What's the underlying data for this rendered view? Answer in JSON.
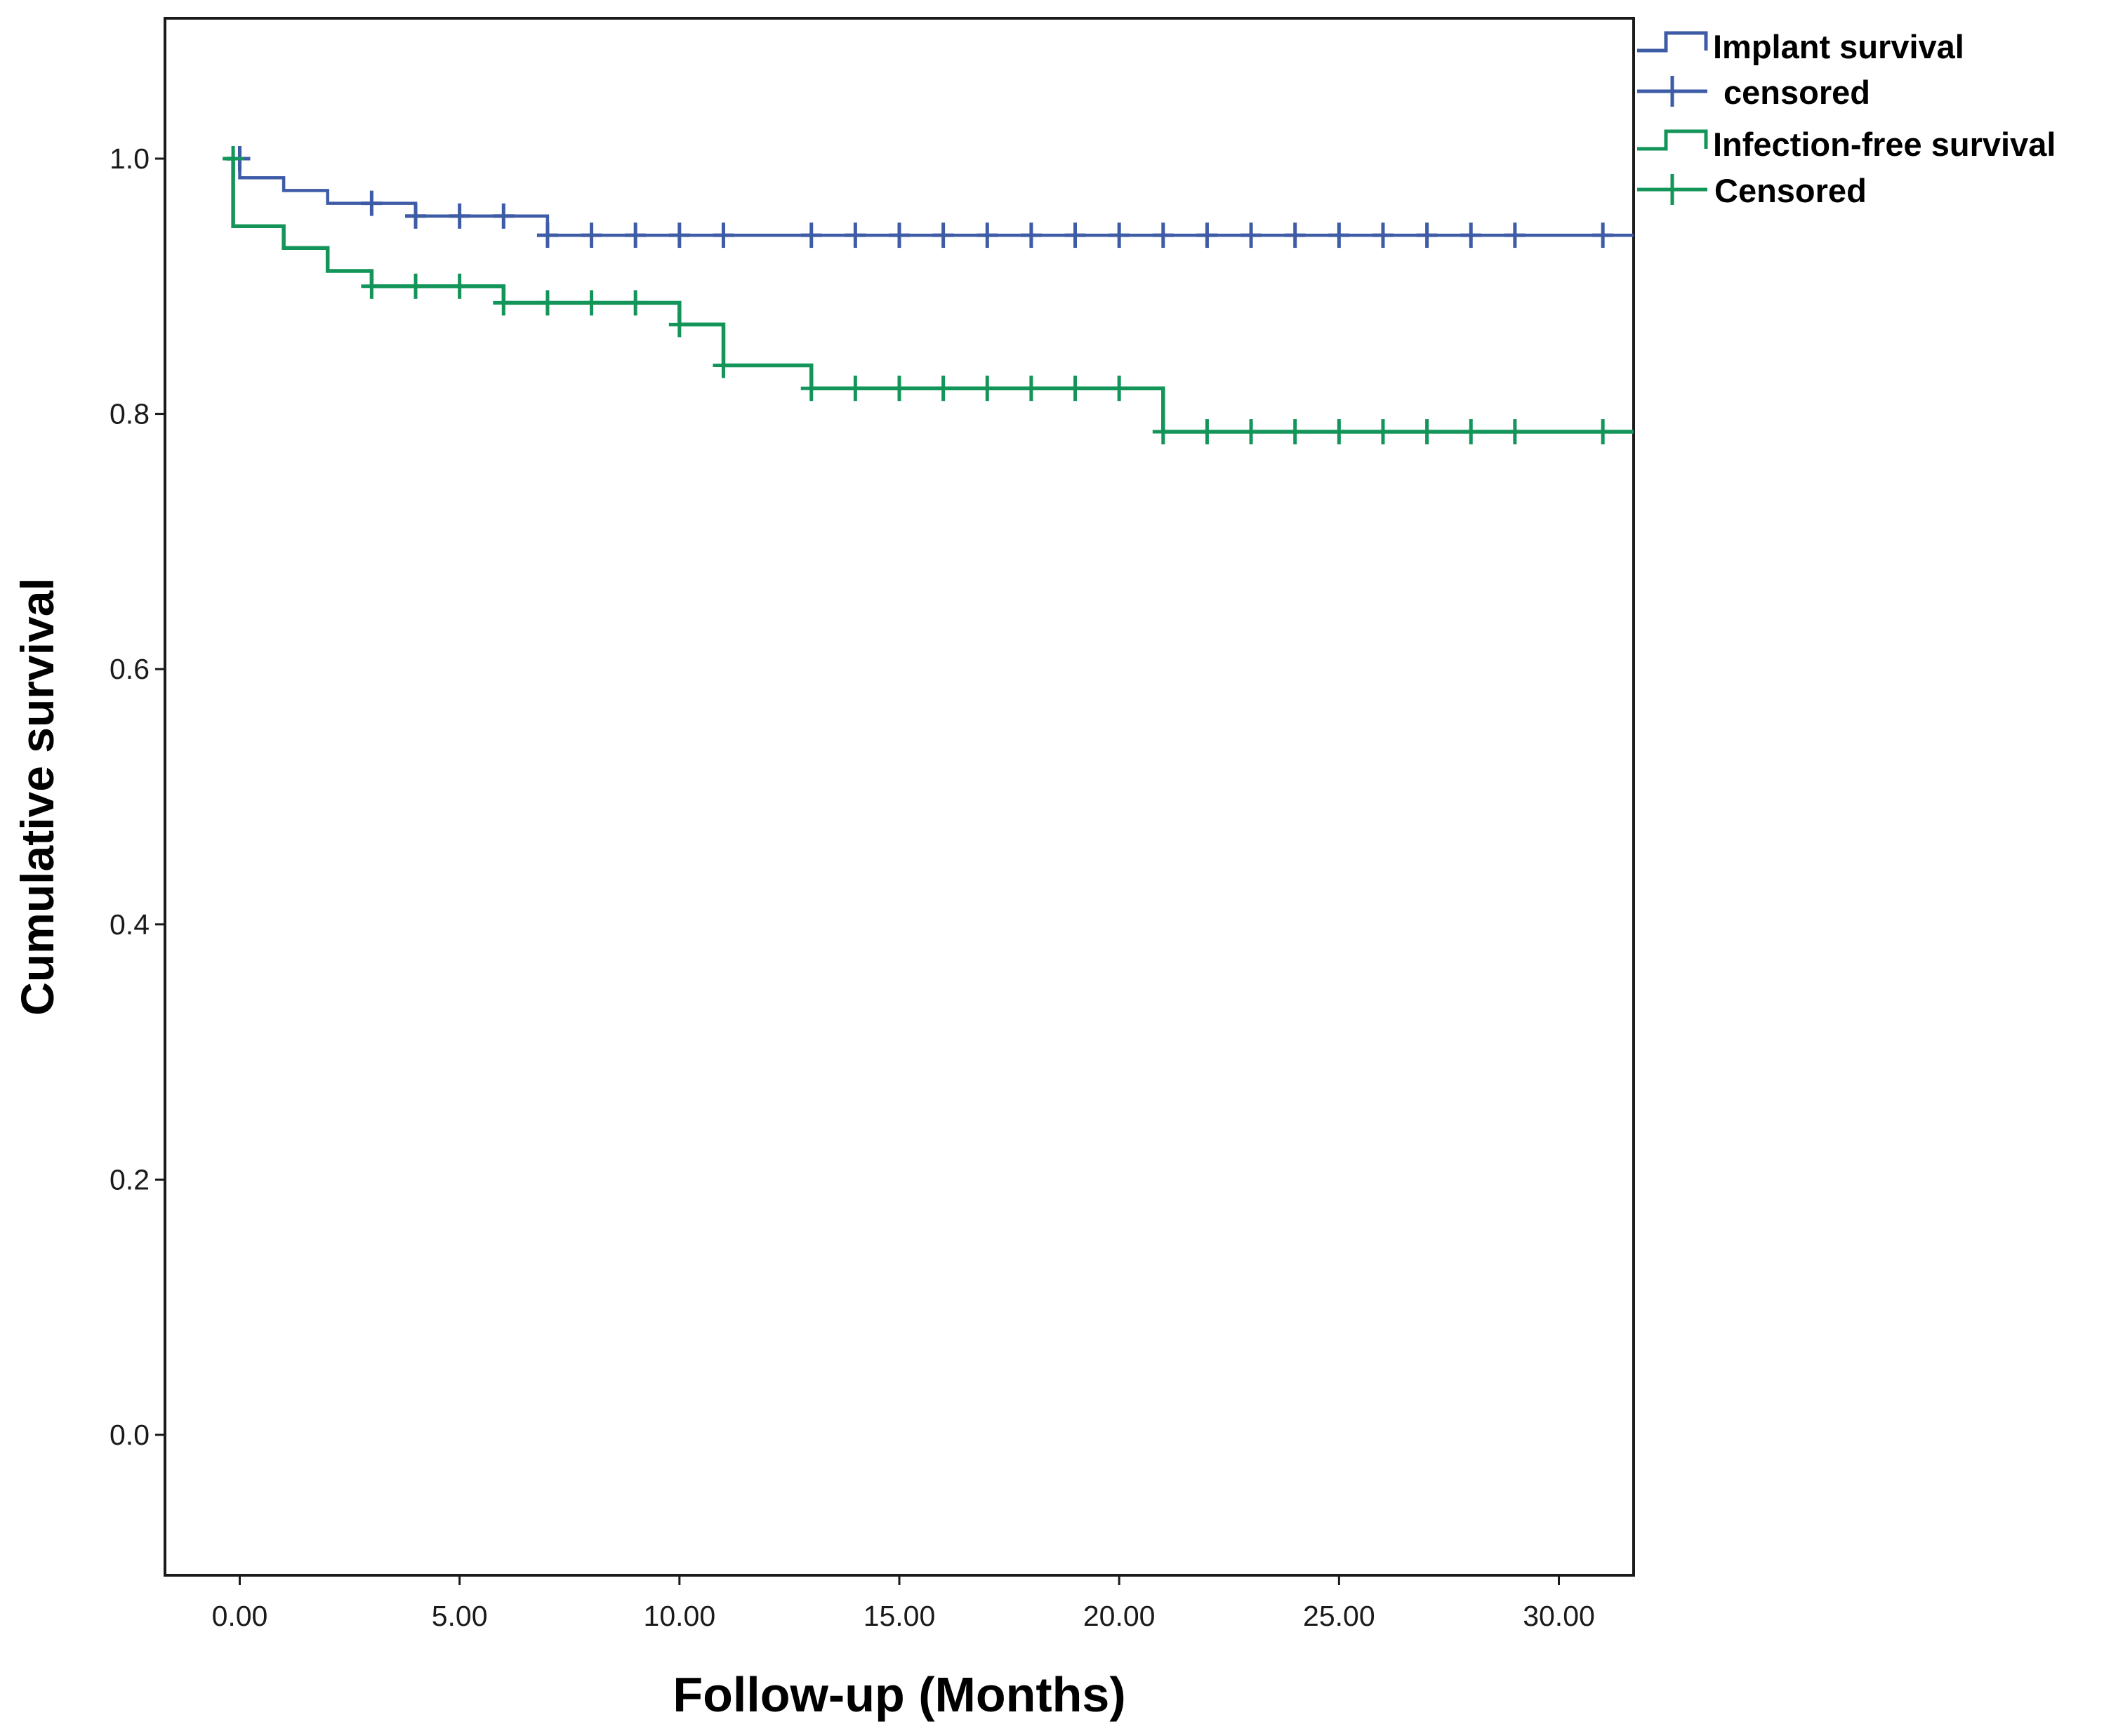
{
  "chart_data": {
    "type": "line",
    "subtype": "kaplan-meier step curves",
    "title": "",
    "xlabel": "Follow-up (Months)",
    "ylabel": "Cumulative survival",
    "xlim": [
      -1.7,
      31.7
    ],
    "ylim": [
      -0.11,
      1.11
    ],
    "x_ticks": [
      0,
      5,
      10,
      15,
      20,
      25,
      30
    ],
    "x_tick_labels": [
      "0.00",
      "5.00",
      "10.00",
      "15.00",
      "20.00",
      "25.00",
      "30.00"
    ],
    "y_ticks": [
      0.0,
      0.2,
      0.4,
      0.6,
      0.8,
      1.0
    ],
    "y_tick_labels": [
      "0.0",
      "0.2",
      "0.4",
      "0.6",
      "0.8",
      "1.0"
    ],
    "grid": false,
    "legend_position": "outside-top-right",
    "series": [
      {
        "name": "Implant survival",
        "censored_label": "censored",
        "color": "#3e5ba6",
        "steps": [
          [
            0,
            1.0
          ],
          [
            0,
            0.985
          ],
          [
            1,
            0.975
          ],
          [
            2,
            0.965
          ],
          [
            4,
            0.955
          ],
          [
            7,
            0.94
          ],
          [
            31.7,
            0.94
          ]
        ],
        "censored": [
          [
            0,
            1.0
          ],
          [
            3,
            0.965
          ],
          [
            4,
            0.955
          ],
          [
            5,
            0.955
          ],
          [
            6,
            0.955
          ],
          [
            7,
            0.94
          ],
          [
            8,
            0.94
          ],
          [
            9,
            0.94
          ],
          [
            10,
            0.94
          ],
          [
            11,
            0.94
          ],
          [
            13,
            0.94
          ],
          [
            14,
            0.94
          ],
          [
            15,
            0.94
          ],
          [
            16,
            0.94
          ],
          [
            17,
            0.94
          ],
          [
            18,
            0.94
          ],
          [
            19,
            0.94
          ],
          [
            20,
            0.94
          ],
          [
            21,
            0.94
          ],
          [
            22,
            0.94
          ],
          [
            23,
            0.94
          ],
          [
            24,
            0.94
          ],
          [
            25,
            0.94
          ],
          [
            26,
            0.94
          ],
          [
            27,
            0.94
          ],
          [
            28,
            0.94
          ],
          [
            29,
            0.94
          ],
          [
            31,
            0.94
          ]
        ]
      },
      {
        "name": "Infection-free survival",
        "censored_label": "Censored",
        "color": "#13955a",
        "steps": [
          [
            -0.3,
            1.0
          ],
          [
            -0.15,
            1.0
          ],
          [
            -0.15,
            0.947
          ],
          [
            1,
            0.93
          ],
          [
            2,
            0.912
          ],
          [
            3,
            0.9
          ],
          [
            6,
            0.887
          ],
          [
            10,
            0.87
          ],
          [
            11,
            0.838
          ],
          [
            13,
            0.82
          ],
          [
            21,
            0.786
          ],
          [
            31.7,
            0.786
          ]
        ],
        "censored": [
          [
            -0.15,
            1.0
          ],
          [
            3,
            0.9
          ],
          [
            4,
            0.9
          ],
          [
            5,
            0.9
          ],
          [
            6,
            0.887
          ],
          [
            7,
            0.887
          ],
          [
            8,
            0.887
          ],
          [
            9,
            0.887
          ],
          [
            10,
            0.87
          ],
          [
            11,
            0.838
          ],
          [
            13,
            0.82
          ],
          [
            14,
            0.82
          ],
          [
            15,
            0.82
          ],
          [
            16,
            0.82
          ],
          [
            17,
            0.82
          ],
          [
            18,
            0.82
          ],
          [
            19,
            0.82
          ],
          [
            20,
            0.82
          ],
          [
            21,
            0.786
          ],
          [
            22,
            0.786
          ],
          [
            23,
            0.786
          ],
          [
            24,
            0.786
          ],
          [
            25,
            0.786
          ],
          [
            26,
            0.786
          ],
          [
            27,
            0.786
          ],
          [
            28,
            0.786
          ],
          [
            29,
            0.786
          ],
          [
            31,
            0.786
          ]
        ]
      }
    ]
  }
}
